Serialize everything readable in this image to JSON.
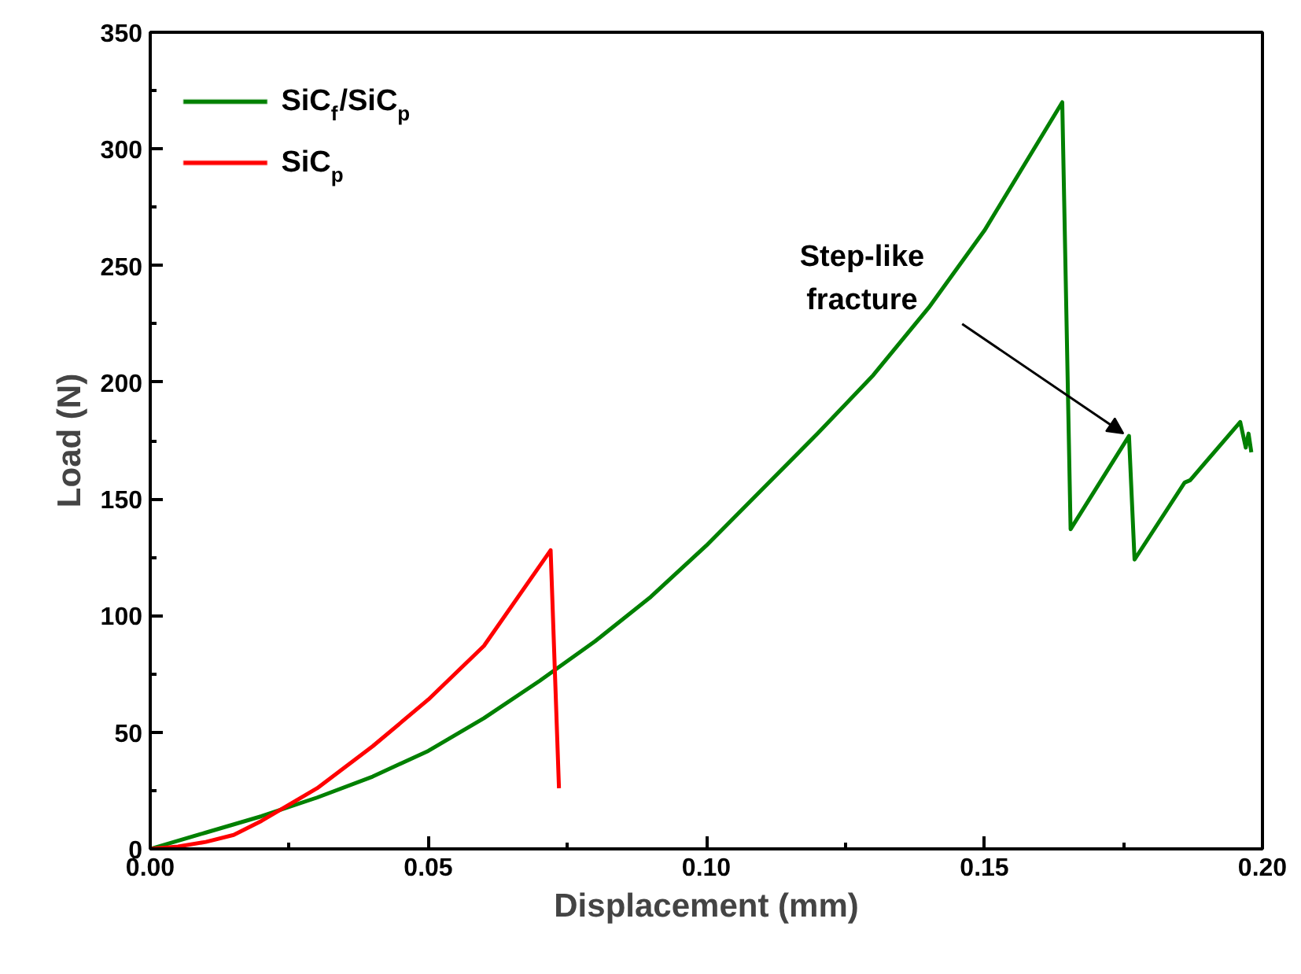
{
  "chart_data": {
    "type": "line",
    "xlabel": "Displacement (mm)",
    "ylabel": "Load (N)",
    "xlim": [
      0,
      0.2
    ],
    "ylim": [
      0,
      350
    ],
    "xticks": [
      {
        "value": 0,
        "label": "0.00"
      },
      {
        "value": 0.05,
        "label": "0.05"
      },
      {
        "value": 0.1,
        "label": "0.10"
      },
      {
        "value": 0.15,
        "label": "0.15"
      },
      {
        "value": 0.2,
        "label": "0.20"
      }
    ],
    "yticks": [
      0,
      50,
      100,
      150,
      200,
      250,
      300,
      350
    ],
    "grid": false,
    "legend": "top left",
    "line_style": "solid",
    "marker": "none",
    "annotations": [
      {
        "text": "Step-like\nfracture",
        "x": 0.175,
        "y": 178
      }
    ],
    "series": [
      {
        "name": "SiC$_{f}$/SiC$_{p}$",
        "color": "#008000",
        "x": [
          0,
          0.01,
          0.02,
          0.03,
          0.04,
          0.05,
          0.06,
          0.07,
          0.08,
          0.09,
          0.1,
          0.11,
          0.12,
          0.13,
          0.14,
          0.15,
          0.164,
          0.1655,
          0.176,
          0.177,
          0.186,
          0.187,
          0.196,
          0.197,
          0.1975,
          0.198
        ],
        "values": [
          0,
          7,
          14,
          22,
          31,
          42,
          56,
          72,
          89,
          108,
          130,
          154,
          178,
          203,
          232,
          265,
          320,
          137,
          177,
          124,
          157,
          158,
          183,
          172,
          178,
          170
        ]
      },
      {
        "name": "SiC$_{p}$",
        "color": "#ff0000",
        "x": [
          0,
          0.005,
          0.01,
          0.015,
          0.02,
          0.03,
          0.04,
          0.05,
          0.06,
          0.072,
          0.0735
        ],
        "values": [
          0,
          1,
          3,
          6,
          12,
          26,
          44,
          64,
          87,
          128,
          26
        ]
      }
    ]
  }
}
